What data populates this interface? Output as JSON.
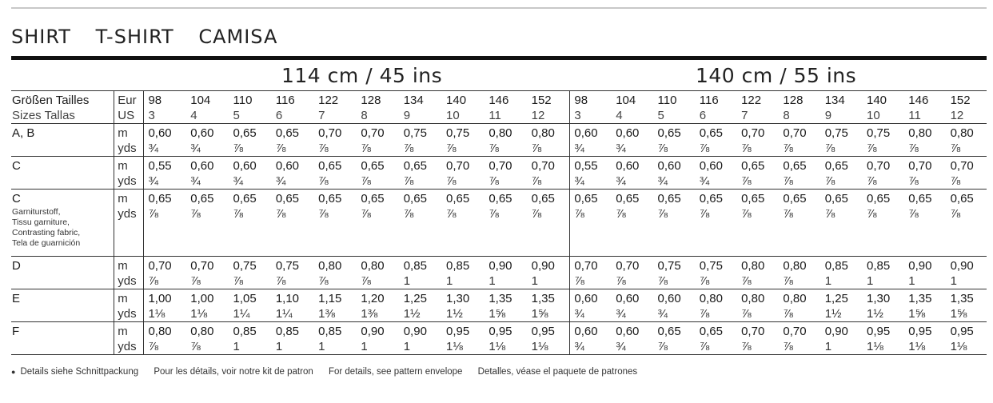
{
  "title": [
    "SHIRT",
    "T-SHIRT",
    "CAMISA"
  ],
  "fabric_widths": [
    "114 cm / 45 ins",
    "140 cm / 55 ins"
  ],
  "size_header": {
    "label_line1": "Größen Tailles",
    "label_line2": "Sizes Tallas",
    "unit_line1": "Eur",
    "unit_line2": "US",
    "eur": [
      "98",
      "104",
      "110",
      "116",
      "122",
      "128",
      "134",
      "140",
      "146",
      "152",
      "98",
      "104",
      "110",
      "116",
      "122",
      "128",
      "134",
      "140",
      "146",
      "152"
    ],
    "us": [
      "3",
      "4",
      "5",
      "6",
      "7",
      "8",
      "9",
      "10",
      "11",
      "12",
      "3",
      "4",
      "5",
      "6",
      "7",
      "8",
      "9",
      "10",
      "11",
      "12"
    ]
  },
  "rows": [
    {
      "label": "A, B",
      "notes": [],
      "m": [
        "0,60",
        "0,60",
        "0,65",
        "0,65",
        "0,70",
        "0,70",
        "0,75",
        "0,75",
        "0,80",
        "0,80",
        "0,60",
        "0,60",
        "0,65",
        "0,65",
        "0,70",
        "0,70",
        "0,75",
        "0,75",
        "0,80",
        "0,80"
      ],
      "yds": [
        "¾",
        "¾",
        "⅞",
        "⅞",
        "⅞",
        "⅞",
        "⅞",
        "⅞",
        "⅞",
        "⅞",
        "¾",
        "¾",
        "⅞",
        "⅞",
        "⅞",
        "⅞",
        "⅞",
        "⅞",
        "⅞",
        "⅞"
      ]
    },
    {
      "label": "C",
      "notes": [],
      "m": [
        "0,55",
        "0,60",
        "0,60",
        "0,60",
        "0,65",
        "0,65",
        "0,65",
        "0,70",
        "0,70",
        "0,70",
        "0,55",
        "0,60",
        "0,60",
        "0,60",
        "0,65",
        "0,65",
        "0,65",
        "0,70",
        "0,70",
        "0,70"
      ],
      "yds": [
        "¾",
        "¾",
        "¾",
        "¾",
        "⅞",
        "⅞",
        "⅞",
        "⅞",
        "⅞",
        "⅞",
        "¾",
        "¾",
        "¾",
        "¾",
        "⅞",
        "⅞",
        "⅞",
        "⅞",
        "⅞",
        "⅞"
      ]
    },
    {
      "label": "C",
      "notes": [
        "Garniturstoff,",
        "Tissu garniture,",
        "Contrasting fabric,",
        "Tela de guarnición"
      ],
      "m": [
        "0,65",
        "0,65",
        "0,65",
        "0,65",
        "0,65",
        "0,65",
        "0,65",
        "0,65",
        "0,65",
        "0,65",
        "0,65",
        "0,65",
        "0,65",
        "0,65",
        "0,65",
        "0,65",
        "0,65",
        "0,65",
        "0,65",
        "0,65"
      ],
      "yds": [
        "⅞",
        "⅞",
        "⅞",
        "⅞",
        "⅞",
        "⅞",
        "⅞",
        "⅞",
        "⅞",
        "⅞",
        "⅞",
        "⅞",
        "⅞",
        "⅞",
        "⅞",
        "⅞",
        "⅞",
        "⅞",
        "⅞",
        "⅞"
      ]
    },
    {
      "label": "D",
      "notes": [],
      "m": [
        "0,70",
        "0,70",
        "0,75",
        "0,75",
        "0,80",
        "0,80",
        "0,85",
        "0,85",
        "0,90",
        "0,90",
        "0,70",
        "0,70",
        "0,75",
        "0,75",
        "0,80",
        "0,80",
        "0,85",
        "0,85",
        "0,90",
        "0,90"
      ],
      "yds": [
        "⅞",
        "⅞",
        "⅞",
        "⅞",
        "⅞",
        "⅞",
        "1",
        "1",
        "1",
        "1",
        "⅞",
        "⅞",
        "⅞",
        "⅞",
        "⅞",
        "⅞",
        "1",
        "1",
        "1",
        "1"
      ]
    },
    {
      "label": "E",
      "notes": [],
      "m": [
        "1,00",
        "1,00",
        "1,05",
        "1,10",
        "1,15",
        "1,20",
        "1,25",
        "1,30",
        "1,35",
        "1,35",
        "0,60",
        "0,60",
        "0,60",
        "0,80",
        "0,80",
        "0,80",
        "1,25",
        "1,30",
        "1,35",
        "1,35"
      ],
      "yds": [
        "1⅛",
        "1⅛",
        "1¼",
        "1¼",
        "1⅜",
        "1⅜",
        "1½",
        "1½",
        "1⅝",
        "1⅝",
        "¾",
        "¾",
        "¾",
        "⅞",
        "⅞",
        "⅞",
        "1½",
        "1½",
        "1⅝",
        "1⅝"
      ]
    },
    {
      "label": "F",
      "notes": [],
      "m": [
        "0,80",
        "0,80",
        "0,85",
        "0,85",
        "0,85",
        "0,90",
        "0,90",
        "0,95",
        "0,95",
        "0,95",
        "0,60",
        "0,60",
        "0,65",
        "0,65",
        "0,70",
        "0,70",
        "0,90",
        "0,95",
        "0,95",
        "0,95"
      ],
      "yds": [
        "⅞",
        "⅞",
        "1",
        "1",
        "1",
        "1",
        "1",
        "1⅛",
        "1⅛",
        "1⅛",
        "¾",
        "¾",
        "⅞",
        "⅞",
        "⅞",
        "⅞",
        "1",
        "1⅛",
        "1⅛",
        "1⅛"
      ]
    }
  ],
  "units": {
    "m": "m",
    "yds": "yds"
  },
  "footer": {
    "bullet": "●",
    "items": [
      "Details siehe Schnittpackung",
      "Pour les détails, voir notre kit de patron",
      "For details, see pattern envelope",
      "Detalles, véase el paquete de patrones"
    ]
  }
}
